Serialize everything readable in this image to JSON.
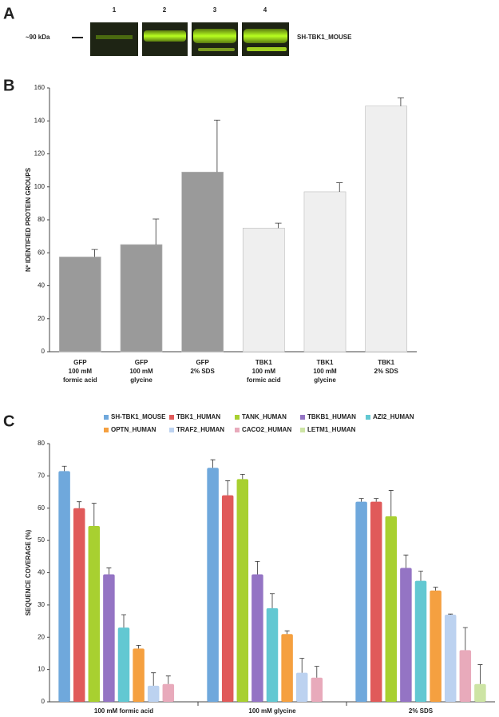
{
  "panel_a": {
    "label": "A",
    "lanes": [
      "1",
      "2",
      "3",
      "4"
    ],
    "marker": "~90 kDa",
    "protein": "SH-TBK1_MOUSE"
  },
  "chart_data": [
    {
      "type": "bar",
      "panel": "B",
      "y_label": "Nº IDENTIFIED PROTEIN GROUPS",
      "categories": [
        [
          "GFP",
          "100 mM",
          "formic acid"
        ],
        [
          "GFP",
          "100 mM",
          "glycine"
        ],
        [
          "GFP",
          "2% SDS"
        ],
        [
          "TBK1",
          "100 mM",
          "formic acid"
        ],
        [
          "TBK1",
          "100 mM",
          "glycine"
        ],
        [
          "TBK1",
          "2% SDS"
        ]
      ],
      "values": [
        57.5,
        65,
        109,
        75,
        97,
        149
      ],
      "errors": [
        4.5,
        15.5,
        31.5,
        3,
        5.5,
        5
      ],
      "colors": [
        "#9a9a9a",
        "#9a9a9a",
        "#9a9a9a",
        "#efefef",
        "#efefef",
        "#efefef"
      ],
      "ylim": [
        0,
        160
      ],
      "yticks": [
        0,
        20,
        40,
        60,
        80,
        100,
        120,
        140,
        160
      ]
    },
    {
      "type": "bar",
      "panel": "C",
      "y_label": "SEQUENCE COVERAGE (%)",
      "categories": [
        "100 mM formic acid",
        "100 mM glycine",
        "2% SDS"
      ],
      "series": [
        {
          "name": "SH-TBK1_MOUSE",
          "color": "#6fa8dc",
          "values": [
            71.5,
            72.5,
            62
          ],
          "errors": [
            1.5,
            2.5,
            1
          ]
        },
        {
          "name": "TBK1_HUMAN",
          "color": "#e05a5a",
          "values": [
            60,
            64,
            62
          ],
          "errors": [
            2,
            4.5,
            1
          ]
        },
        {
          "name": "TANK_HUMAN",
          "color": "#a8d030",
          "values": [
            54.5,
            69,
            57.5
          ],
          "errors": [
            7,
            1.5,
            8
          ]
        },
        {
          "name": "TBKB1_HUMAN",
          "color": "#9474c4",
          "values": [
            39.5,
            39.5,
            41.5
          ],
          "errors": [
            2,
            4,
            4
          ]
        },
        {
          "name": "AZI2_HUMAN",
          "color": "#62c8d2",
          "values": [
            23,
            29,
            37.5
          ],
          "errors": [
            4,
            4.5,
            3
          ]
        },
        {
          "name": "OPTN_HUMAN",
          "color": "#f5a040",
          "values": [
            16.5,
            21,
            34.5
          ],
          "errors": [
            1,
            1,
            1
          ]
        },
        {
          "name": "TRAF2_HUMAN",
          "color": "#bcd2f0",
          "values": [
            5,
            9,
            27
          ],
          "errors": [
            4,
            4.5,
            0.2
          ]
        },
        {
          "name": "CACO2_HUMAN",
          "color": "#e8aabb",
          "values": [
            5.5,
            7.5,
            16
          ],
          "errors": [
            2.5,
            3.5,
            7
          ]
        },
        {
          "name": "LETM1_HUMAN",
          "color": "#cde4a4",
          "values": [
            null,
            null,
            5.5
          ],
          "errors": [
            null,
            null,
            6
          ]
        }
      ],
      "ylim": [
        0,
        80
      ],
      "yticks": [
        0,
        10,
        20,
        30,
        40,
        50,
        60,
        70,
        80
      ]
    }
  ]
}
